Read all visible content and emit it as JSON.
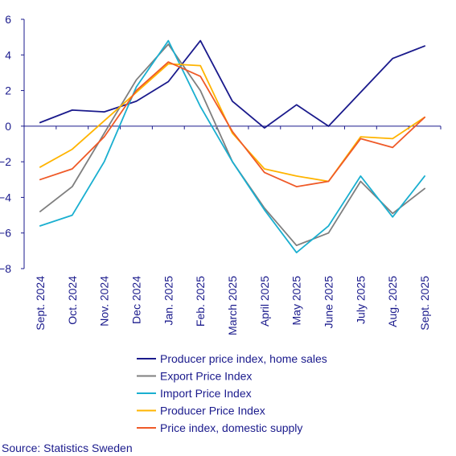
{
  "chart_data": {
    "type": "line",
    "categories": [
      "Sept. 2024",
      "Oct. 2024",
      "Nov. 2024",
      "Dec 2024",
      "Jan. 2025",
      "Feb. 2025",
      "March 2025",
      "April 2025",
      "May 2025",
      "June 2025",
      "July 2025",
      "Aug. 2025",
      "Sept. 2025"
    ],
    "ylim": [
      -8,
      6
    ],
    "yticks": [
      6,
      4,
      2,
      0,
      -2,
      -4,
      -6,
      -8
    ],
    "grid": false,
    "legend_position": "bottom",
    "series": [
      {
        "name": "Producer price index, home sales",
        "color": "#1a1a8c",
        "values": [
          0.2,
          0.9,
          0.8,
          1.4,
          2.5,
          4.8,
          1.4,
          -0.1,
          1.2,
          0.0,
          1.9,
          3.8,
          4.5
        ]
      },
      {
        "name": "Export Price Index",
        "color": "#7f7f7f",
        "values": [
          -4.8,
          -3.4,
          -0.4,
          2.6,
          4.6,
          2.0,
          -2.0,
          -4.6,
          -6.7,
          -6.0,
          -3.1,
          -4.9,
          -3.5
        ]
      },
      {
        "name": "Import Price Index",
        "color": "#1aafd0",
        "values": [
          -5.6,
          -5.0,
          -2.0,
          2.2,
          4.8,
          1.1,
          -2.0,
          -4.7,
          -7.1,
          -5.6,
          -2.8,
          -5.1,
          -2.8
        ]
      },
      {
        "name": "Producer Price Index",
        "color": "#ffb400",
        "values": [
          -2.3,
          -1.3,
          0.3,
          1.9,
          3.5,
          3.4,
          -0.4,
          -2.4,
          -2.8,
          -3.1,
          -0.6,
          -0.7,
          0.5
        ]
      },
      {
        "name": "Price index, domestic supply",
        "color": "#ef5a28",
        "values": [
          -3.0,
          -2.4,
          -0.6,
          2.0,
          3.6,
          2.8,
          -0.3,
          -2.6,
          -3.4,
          -3.1,
          -0.7,
          -1.2,
          0.5
        ]
      }
    ]
  },
  "source": "Source: Statistics Sweden"
}
